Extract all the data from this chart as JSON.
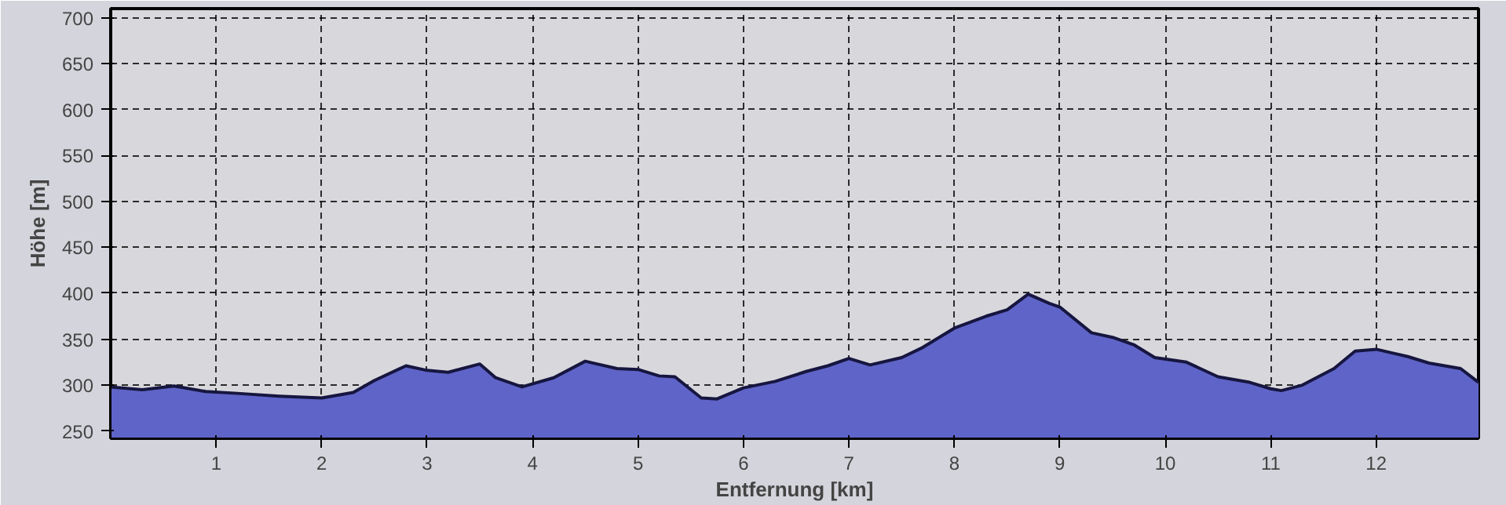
{
  "chart_data": {
    "type": "area",
    "xlabel": "Entfernung [km]",
    "ylabel": "Höhe [m]",
    "xlim": [
      0,
      12.97
    ],
    "ylim": [
      242,
      710
    ],
    "xticks": [
      1,
      2,
      3,
      4,
      5,
      6,
      7,
      8,
      9,
      10,
      11,
      12
    ],
    "yticks": [
      250,
      300,
      350,
      400,
      450,
      500,
      550,
      600,
      650,
      700
    ],
    "grid": true,
    "series": [
      {
        "color": "#5f64c8",
        "x": [
          0,
          0.3,
          0.6,
          0.9,
          1.2,
          1.6,
          2.0,
          2.3,
          2.5,
          2.8,
          3.0,
          3.2,
          3.5,
          3.65,
          3.9,
          4.2,
          4.5,
          4.8,
          5.0,
          5.2,
          5.35,
          5.6,
          5.75,
          6.0,
          6.3,
          6.6,
          6.8,
          7.0,
          7.2,
          7.5,
          7.7,
          8.0,
          8.3,
          8.5,
          8.7,
          8.9,
          9.0,
          9.3,
          9.5,
          9.7,
          9.9,
          10.2,
          10.5,
          10.8,
          11.0,
          11.1,
          11.3,
          11.6,
          11.8,
          12.0,
          12.3,
          12.5,
          12.8,
          12.97
        ],
        "values": [
          298,
          295,
          299,
          293,
          291,
          288,
          286,
          292,
          305,
          321,
          316,
          314,
          323,
          308,
          298,
          308,
          326,
          318,
          317,
          310,
          309,
          286,
          285,
          297,
          304,
          315,
          321,
          329,
          322,
          330,
          341,
          362,
          375,
          382,
          399,
          389,
          385,
          357,
          352,
          344,
          330,
          325,
          309,
          303,
          296,
          294,
          300,
          318,
          337,
          339,
          331,
          324,
          318,
          303
        ]
      }
    ]
  }
}
